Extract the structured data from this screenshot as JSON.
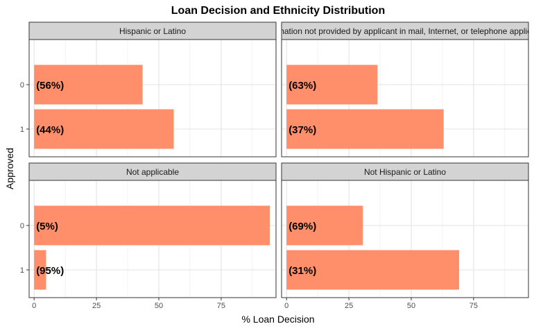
{
  "chart_data": {
    "type": "bar",
    "orientation": "horizontal",
    "title": "Loan Decision and Ethnicity Distribution",
    "xlabel": "% Loan Decision",
    "ylabel": "Approved",
    "xlim": [
      -2,
      97
    ],
    "xticks": [
      0,
      25,
      50,
      75
    ],
    "categories": [
      "0",
      "1"
    ],
    "grid": true,
    "bar_color": "#FF8F6A",
    "strip_color": "#D3D3D3",
    "facets": [
      {
        "label": "Hispanic or Latino",
        "values": [
          43.5,
          56
        ],
        "bar_labels": [
          "(56%)",
          "(44%)"
        ]
      },
      {
        "label": "Information not provided by applicant in mail, Internet, or telephone application",
        "values": [
          36.5,
          63
        ],
        "bar_labels": [
          "(63%)",
          "(37%)"
        ]
      },
      {
        "label": "Not applicable",
        "values": [
          94.5,
          4.8
        ],
        "bar_labels": [
          "(5%)",
          "(95%)"
        ]
      },
      {
        "label": "Not Hispanic or Latino",
        "values": [
          30.6,
          69.2
        ],
        "bar_labels": [
          "(69%)",
          "(31%)"
        ]
      }
    ]
  }
}
